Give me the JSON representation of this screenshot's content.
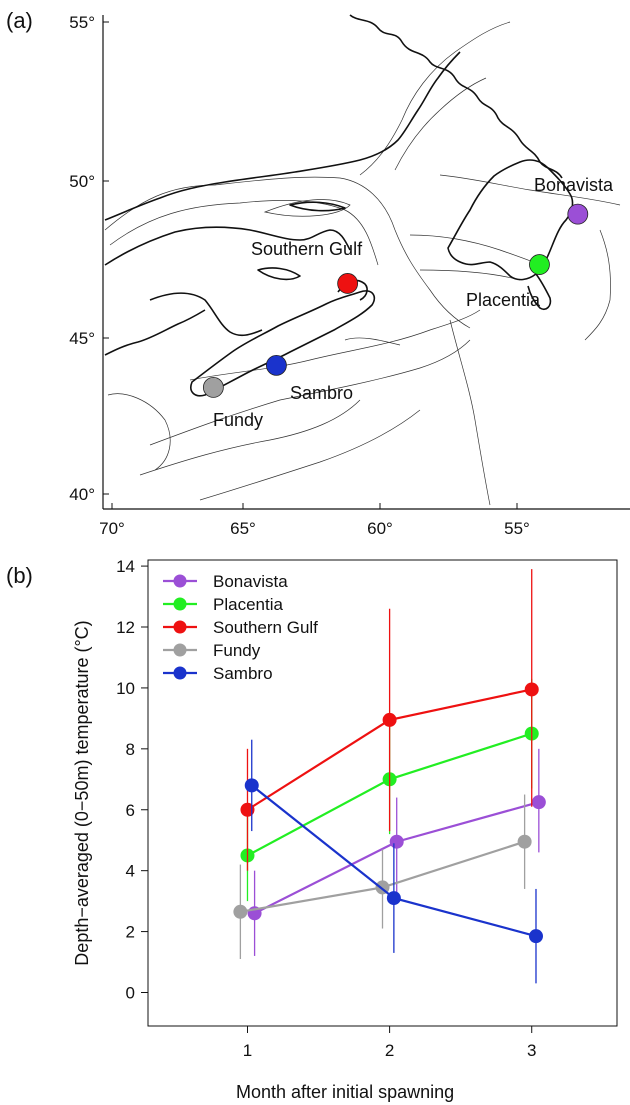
{
  "panel_a": {
    "panel_label": "(a)",
    "lon_ticks": [
      "70°",
      "65°",
      "60°",
      "55°"
    ],
    "lat_ticks": [
      "55°",
      "50°",
      "45°",
      "40°"
    ],
    "sites": [
      {
        "name": "Bonavista",
        "lon": -53.0,
        "lat": 48.9,
        "color": "#9b4fd6"
      },
      {
        "name": "Placentia",
        "lon": -54.4,
        "lat": 47.3,
        "color": "#22ee22"
      },
      {
        "name": "Southern Gulf",
        "lon": -61.4,
        "lat": 46.7,
        "color": "#ee1111"
      },
      {
        "name": "Fundy",
        "lon": -66.3,
        "lat": 43.4,
        "color": "#a0a0a0"
      },
      {
        "name": "Sambro",
        "lon": -64.0,
        "lat": 44.1,
        "color": "#1a33cc"
      }
    ]
  },
  "chart_data": {
    "type": "line",
    "panel_label": "(b)",
    "title": "",
    "xlabel": "Month after initial spawning",
    "ylabel": "Depth−averaged (0−50m) temperature (°C)",
    "x": [
      1,
      2,
      3
    ],
    "xlim": [
      0.3,
      3.6
    ],
    "ylim": [
      -1.1,
      14.2
    ],
    "xticks": [
      "1",
      "2",
      "3"
    ],
    "yticks": [
      "0",
      "2",
      "4",
      "6",
      "8",
      "10",
      "12",
      "14"
    ],
    "legend_position": "top-left",
    "series": [
      {
        "name": "Bonavista",
        "color": "#9b4fd6",
        "values": [
          2.6,
          4.95,
          6.25
        ],
        "err_low": [
          1.2,
          3.3,
          4.6
        ],
        "err_high": [
          4.0,
          6.4,
          8.0
        ]
      },
      {
        "name": "Placentia",
        "color": "#22ee22",
        "values": [
          4.5,
          7.0,
          8.5
        ],
        "err_low": [
          3.0,
          5.2,
          6.7
        ],
        "err_high": [
          6.0,
          8.8,
          10.3
        ]
      },
      {
        "name": "Southern Gulf",
        "color": "#ee1111",
        "values": [
          6.0,
          8.95,
          9.95
        ],
        "err_low": [
          4.0,
          5.3,
          6.1
        ],
        "err_high": [
          8.0,
          12.6,
          13.9
        ]
      },
      {
        "name": "Fundy",
        "color": "#a0a0a0",
        "values": [
          2.65,
          3.45,
          4.95
        ],
        "err_low": [
          1.1,
          2.1,
          3.4
        ],
        "err_high": [
          4.2,
          4.7,
          6.5
        ]
      },
      {
        "name": "Sambro",
        "color": "#1a33cc",
        "values": [
          6.8,
          3.1,
          1.85
        ],
        "err_low": [
          5.3,
          1.3,
          0.3
        ],
        "err_high": [
          8.3,
          4.9,
          3.4
        ]
      }
    ]
  }
}
